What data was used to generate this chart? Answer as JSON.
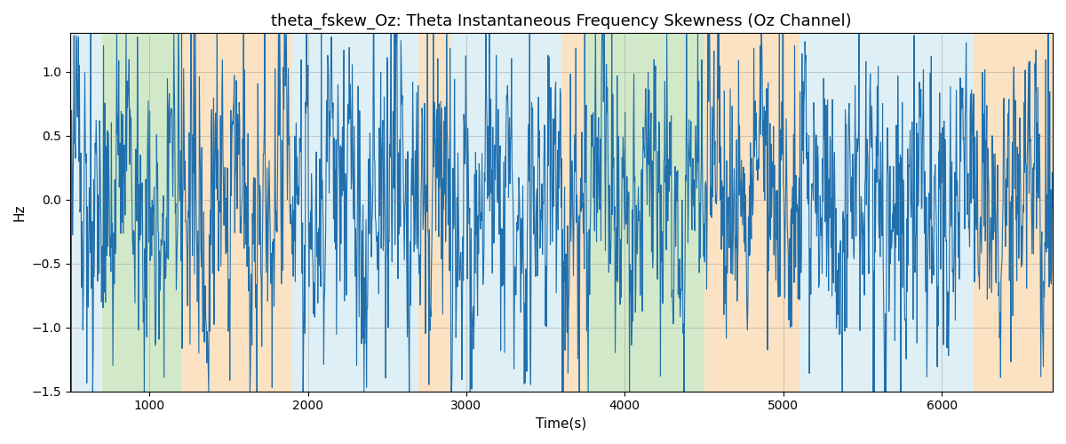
{
  "title": "theta_fskew_Oz: Theta Instantaneous Frequency Skewness (Oz Channel)",
  "xlabel": "Time(s)",
  "ylabel": "Hz",
  "ylim": [
    -1.5,
    1.3
  ],
  "xlim": [
    500,
    6700
  ],
  "background_color": "#ffffff",
  "line_color": "#1f6fad",
  "line_width": 0.8,
  "grid": true,
  "title_fontsize": 13,
  "label_fontsize": 11,
  "bands": [
    {
      "xmin": 500,
      "xmax": 700,
      "color": "#add8e6",
      "alpha": 0.4
    },
    {
      "xmin": 700,
      "xmax": 1200,
      "color": "#90c97a",
      "alpha": 0.4
    },
    {
      "xmin": 1200,
      "xmax": 1900,
      "color": "#f5c07a",
      "alpha": 0.45
    },
    {
      "xmin": 1900,
      "xmax": 2700,
      "color": "#add8e6",
      "alpha": 0.4
    },
    {
      "xmin": 2700,
      "xmax": 2900,
      "color": "#f5c07a",
      "alpha": 0.45
    },
    {
      "xmin": 2900,
      "xmax": 3600,
      "color": "#add8e6",
      "alpha": 0.4
    },
    {
      "xmin": 3600,
      "xmax": 3750,
      "color": "#f5c07a",
      "alpha": 0.45
    },
    {
      "xmin": 3750,
      "xmax": 4200,
      "color": "#90c97a",
      "alpha": 0.4
    },
    {
      "xmin": 4200,
      "xmax": 4500,
      "color": "#90c97a",
      "alpha": 0.4
    },
    {
      "xmin": 4500,
      "xmax": 5100,
      "color": "#f5c07a",
      "alpha": 0.45
    },
    {
      "xmin": 5100,
      "xmax": 5900,
      "color": "#add8e6",
      "alpha": 0.4
    },
    {
      "xmin": 5900,
      "xmax": 6200,
      "color": "#add8e6",
      "alpha": 0.4
    },
    {
      "xmin": 6200,
      "xmax": 6700,
      "color": "#f5c07a",
      "alpha": 0.45
    }
  ],
  "xticks": [
    1000,
    2000,
    3000,
    4000,
    5000,
    6000
  ],
  "yticks": [
    -1.5,
    -1.0,
    -0.5,
    0.0,
    0.5,
    1.0
  ]
}
